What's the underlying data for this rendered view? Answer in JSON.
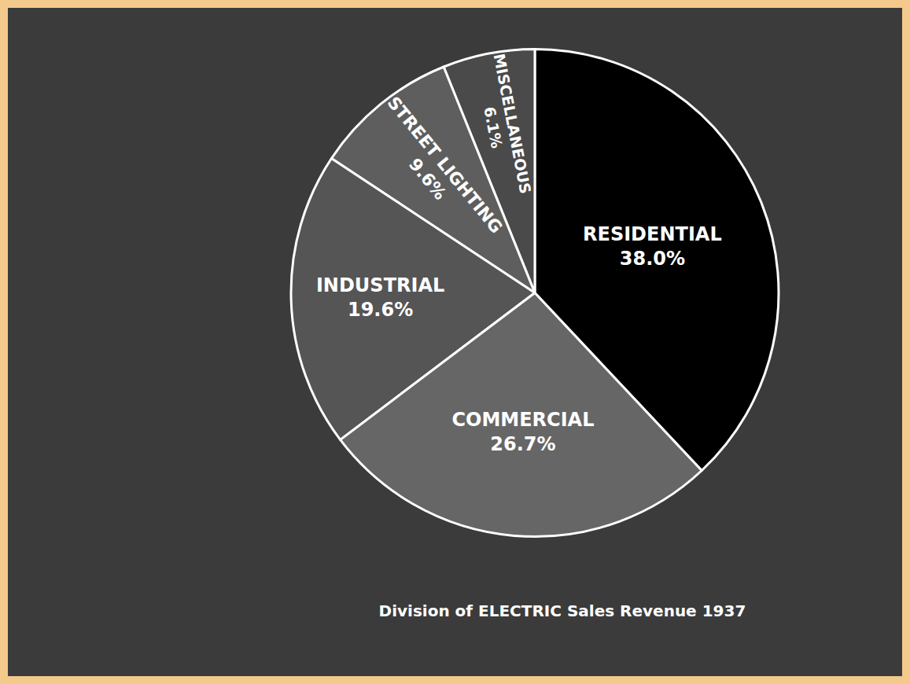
{
  "chart_data": {
    "type": "pie",
    "title": "Division of ELECTRIC Sales Revenue 1937",
    "categories": [
      "RESIDENTIAL",
      "MISCELLANEOUS",
      "STREET LIGHTING",
      "INDUSTRIAL",
      "COMMERCIAL"
    ],
    "values": [
      38.0,
      6.1,
      9.6,
      19.6,
      26.7
    ],
    "value_labels": [
      "38.0%",
      "6.1%",
      "9.6%",
      "19.6%",
      "26.7%"
    ],
    "colors": [
      "#000000",
      "#4a4a4a",
      "#5e5e5e",
      "#555555",
      "#666666"
    ],
    "data_labels": true
  }
}
